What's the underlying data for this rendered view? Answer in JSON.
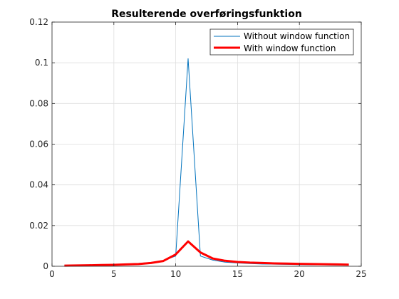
{
  "chart_data": {
    "type": "line",
    "title": "Resulterende overføringsfunktion",
    "xlabel": "",
    "ylabel": "",
    "xlim": [
      0,
      25
    ],
    "ylim": [
      0,
      0.12
    ],
    "xticks": [
      0,
      5,
      10,
      15,
      20,
      25
    ],
    "yticks": [
      0,
      0.02,
      0.04,
      0.06,
      0.08,
      0.1,
      0.12
    ],
    "ytick_labels": [
      "0",
      "0.02",
      "0.04",
      "0.06",
      "0.08",
      "0.1",
      "0.12"
    ],
    "grid": true,
    "legend_position": "top-right",
    "series": [
      {
        "name": "Without window function",
        "color": "#0072BD",
        "x": [
          1,
          2,
          3,
          4,
          5,
          6,
          7,
          8,
          9,
          10,
          11,
          12,
          13,
          14,
          15,
          16,
          17,
          18,
          19,
          20,
          21,
          22,
          23,
          24
        ],
        "y": [
          0.0004,
          0.0005,
          0.0006,
          0.0007,
          0.0009,
          0.0011,
          0.0014,
          0.0019,
          0.0028,
          0.005,
          0.102,
          0.005,
          0.003,
          0.002,
          0.0016,
          0.0013,
          0.0011,
          0.001,
          0.0009,
          0.0008,
          0.0007,
          0.0007,
          0.0006,
          0.0006
        ]
      },
      {
        "name": "With window function",
        "color": "#FF0000",
        "x": [
          1,
          2,
          3,
          4,
          5,
          6,
          7,
          8,
          9,
          10,
          11,
          12,
          13,
          14,
          15,
          16,
          17,
          18,
          19,
          20,
          21,
          22,
          23,
          24
        ],
        "y": [
          0.0003,
          0.0004,
          0.0005,
          0.0006,
          0.0007,
          0.0009,
          0.0011,
          0.0016,
          0.0026,
          0.0058,
          0.0122,
          0.0068,
          0.0038,
          0.0027,
          0.0021,
          0.0018,
          0.0016,
          0.0014,
          0.0013,
          0.0012,
          0.0011,
          0.001,
          0.0009,
          0.0008
        ]
      }
    ]
  }
}
